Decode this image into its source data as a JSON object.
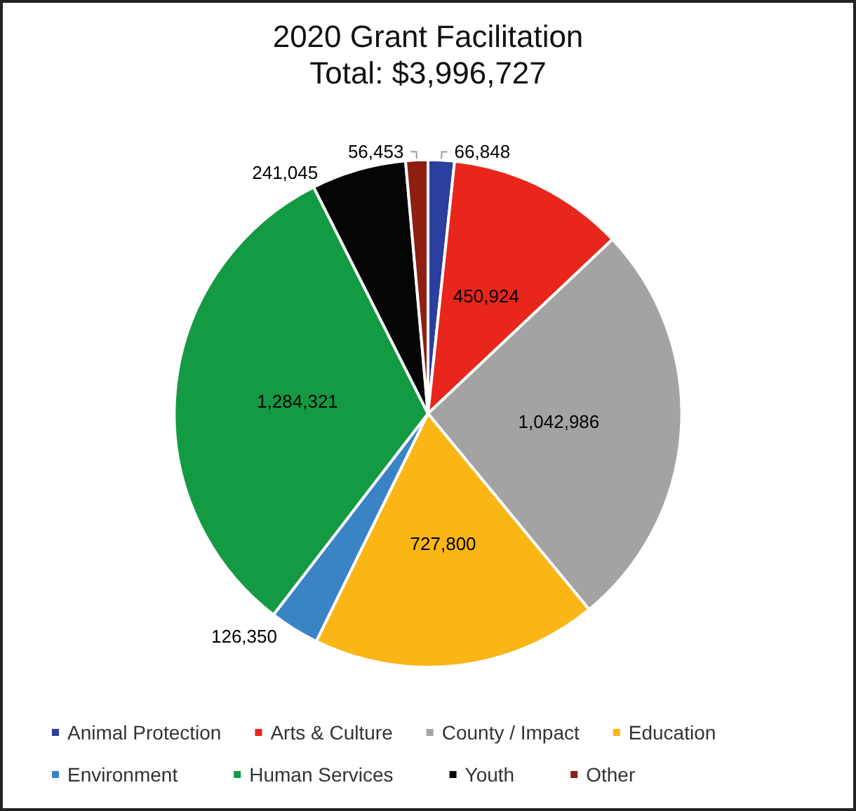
{
  "chart_data": {
    "type": "pie",
    "title": "2020 Grant Facilitation",
    "subtitle": "Total: $3,996,727",
    "categories": [
      "Animal Protection",
      "Arts & Culture",
      "County / Impact",
      "Education",
      "Environment",
      "Human Services",
      "Youth",
      "Other"
    ],
    "values": [
      66848,
      450924,
      1042986,
      727800,
      126350,
      1284321,
      241045,
      56453
    ],
    "colors": [
      "#2b3f9e",
      "#e8261c",
      "#a3a3a3",
      "#fbb615",
      "#3a84c6",
      "#139a43",
      "#050505",
      "#8e1f12"
    ],
    "value_labels": [
      "66,848",
      "450,924",
      "1,042,986",
      "727,800",
      "126,350",
      "1,284,321",
      "241,045",
      "56,453"
    ],
    "legend": "bottom"
  }
}
